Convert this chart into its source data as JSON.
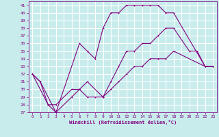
{
  "xlabel": "Windchill (Refroidissement éolien,°C)",
  "bg_color": "#c8ecec",
  "grid_color": "#ffffff",
  "line_color": "#800080",
  "xlim": [
    -0.5,
    23.5
  ],
  "ylim": [
    27,
    41.5
  ],
  "xticks": [
    0,
    1,
    2,
    3,
    4,
    5,
    6,
    7,
    8,
    9,
    10,
    11,
    12,
    13,
    14,
    15,
    16,
    17,
    18,
    19,
    20,
    21,
    22,
    23
  ],
  "yticks": [
    27,
    28,
    29,
    30,
    31,
    32,
    33,
    34,
    35,
    36,
    37,
    38,
    39,
    40,
    41
  ],
  "series1_x": [
    0,
    1,
    3,
    6,
    7,
    8,
    9,
    10,
    11,
    12,
    13,
    14,
    15,
    16,
    17,
    18,
    22,
    23
  ],
  "series1_y": [
    32,
    31,
    27,
    36,
    35,
    34,
    38,
    40,
    40,
    41,
    41,
    41,
    41,
    41,
    40,
    40,
    33,
    33
  ],
  "series2_x": [
    0,
    1,
    2,
    3,
    5,
    6,
    7,
    9,
    10,
    11,
    12,
    13,
    14,
    15,
    16,
    17,
    18,
    20,
    21,
    22,
    23
  ],
  "series2_y": [
    32,
    31,
    28,
    28,
    30,
    30,
    31,
    29,
    31,
    33,
    35,
    35,
    36,
    36,
    37,
    38,
    38,
    35,
    35,
    33,
    33
  ],
  "series3_x": [
    0,
    2,
    3,
    5,
    6,
    7,
    8,
    9,
    10,
    11,
    12,
    13,
    14,
    15,
    16,
    17,
    18,
    22,
    23
  ],
  "series3_y": [
    32,
    28,
    27,
    29,
    30,
    29,
    29,
    29,
    30,
    31,
    32,
    33,
    33,
    34,
    34,
    34,
    35,
    33,
    33
  ]
}
